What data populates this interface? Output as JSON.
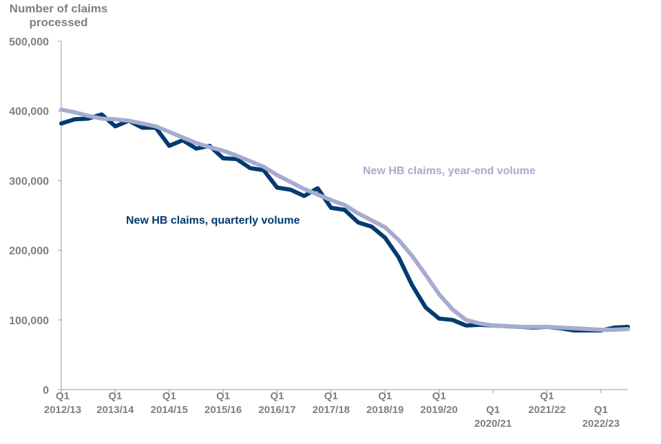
{
  "chart_data": {
    "type": "line",
    "ylabel_lines": [
      "Number of claims",
      "processed"
    ],
    "ylim": [
      0,
      500000
    ],
    "yticks": [
      0,
      100000,
      200000,
      300000,
      400000,
      500000
    ],
    "ytick_labels": [
      "0",
      "100,000",
      "200,000",
      "300,000",
      "400,000",
      "500,000"
    ],
    "xticks": [
      {
        "q": "Q1",
        "year": "2012/13"
      },
      {
        "q": "Q1",
        "year": "2013/14"
      },
      {
        "q": "Q1",
        "year": "2014/15"
      },
      {
        "q": "Q1",
        "year": "2015/16"
      },
      {
        "q": "Q1",
        "year": "2016/17"
      },
      {
        "q": "Q1",
        "year": "2017/18"
      },
      {
        "q": "Q1",
        "year": "2018/19"
      },
      {
        "q": "Q1",
        "year": "2019/20"
      },
      {
        "q": "Q1",
        "year": "2020/21"
      },
      {
        "q": "Q1",
        "year": "2021/22"
      },
      {
        "q": "Q1",
        "year": "2022/23"
      }
    ],
    "quarters_per_tick": 4,
    "grid": false,
    "series": [
      {
        "name": "New HB claims, quarterly volume",
        "color": "#003a70",
        "values": [
          382000,
          388000,
          389000,
          395000,
          378000,
          386000,
          376000,
          376000,
          350000,
          358000,
          346000,
          350000,
          332000,
          331000,
          318000,
          315000,
          290000,
          287000,
          278000,
          289000,
          261000,
          258000,
          240000,
          234000,
          218000,
          190000,
          150000,
          118000,
          102000,
          100000,
          92000,
          93000,
          92000,
          91000,
          90000,
          89000,
          90000,
          88000,
          85000,
          85000,
          85000,
          89000,
          90000
        ]
      },
      {
        "name": "New HB claims, year-end volume",
        "color": "#a6abcf",
        "values": [
          402000,
          398000,
          393000,
          389000,
          388000,
          386000,
          382000,
          378000,
          370000,
          362000,
          354000,
          348000,
          343000,
          336000,
          328000,
          320000,
          308000,
          298000,
          288000,
          280000,
          272000,
          265000,
          253000,
          243000,
          233000,
          215000,
          192000,
          165000,
          137000,
          115000,
          100000,
          95000,
          92000,
          91000,
          90000,
          90000,
          90000,
          89000,
          88000,
          87000,
          86000,
          86000,
          87000
        ]
      }
    ]
  }
}
